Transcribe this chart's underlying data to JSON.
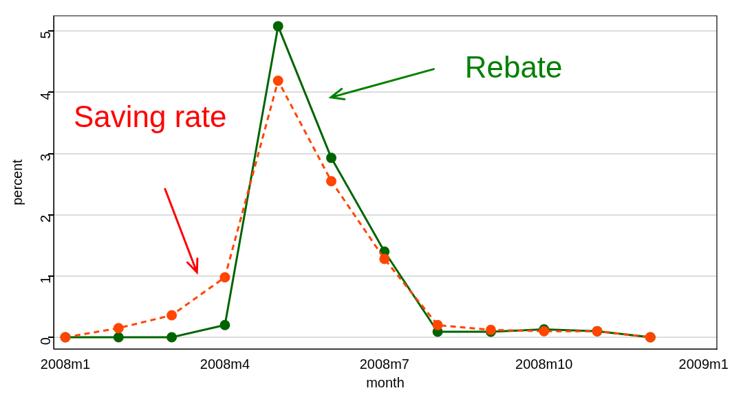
{
  "chart_data": {
    "type": "line",
    "xlabel": "month",
    "ylabel": "percent",
    "categories": [
      "2008m1",
      null,
      null,
      "2008m4",
      null,
      null,
      "2008m7",
      null,
      null,
      "2008m10",
      null,
      null,
      "2009m1"
    ],
    "series": [
      {
        "name": "Rebate",
        "color": "#006400",
        "line_style": "solid",
        "values": [
          0,
          0,
          0,
          0.2,
          5.08,
          2.93,
          1.4,
          0.09,
          0.09,
          0.13,
          0.1,
          0,
          null
        ]
      },
      {
        "name": "Saving rate",
        "color": "#ff4500",
        "line_style": "dashed",
        "values": [
          0,
          0.15,
          0.36,
          0.98,
          4.19,
          2.55,
          1.28,
          0.2,
          0.12,
          0.1,
          0.1,
          0,
          null
        ]
      }
    ],
    "ylim": [
      -0.19,
      5.25
    ],
    "yticks": [
      0,
      1,
      2,
      3,
      4,
      5
    ],
    "grid": "y",
    "legend": false,
    "marker": "circle"
  }
}
